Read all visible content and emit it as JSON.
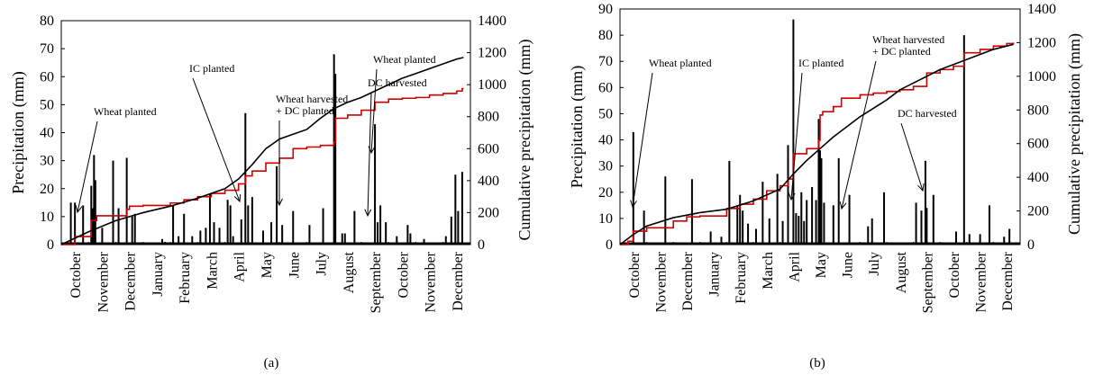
{
  "chart_data": [
    {
      "type": "bar",
      "panel_label": "(a)",
      "ylabel": "Precipitation (mm)",
      "y2label": "Cumulative precipitation (mm)",
      "ylim": [
        0,
        80
      ],
      "yticks": [
        "0",
        "10",
        "20",
        "30",
        "40",
        "50",
        "60",
        "70",
        "80"
      ],
      "y2lim": [
        0,
        1400
      ],
      "y2ticks": [
        "0",
        "200",
        "400",
        "600",
        "800",
        "1000",
        "1200",
        "1400"
      ],
      "months": [
        "October",
        "November",
        "December",
        "January",
        "February",
        "March",
        "April",
        "May",
        "June",
        "July",
        "August",
        "September",
        "October",
        "November",
        "December"
      ],
      "daily_precip": {
        "name": "Daily precipitation",
        "color": "#000000",
        "points": [
          [
            0.35,
            15
          ],
          [
            0.5,
            15
          ],
          [
            0.8,
            14
          ],
          [
            1.1,
            21
          ],
          [
            1.15,
            13
          ],
          [
            1.2,
            32
          ],
          [
            1.25,
            23
          ],
          [
            1.5,
            6
          ],
          [
            1.9,
            30
          ],
          [
            2.1,
            13
          ],
          [
            2.4,
            31
          ],
          [
            2.6,
            10
          ],
          [
            2.7,
            11
          ],
          [
            3.7,
            2
          ],
          [
            3.8,
            1
          ],
          [
            4.1,
            14
          ],
          [
            4.3,
            3
          ],
          [
            4.5,
            11
          ],
          [
            4.8,
            3
          ],
          [
            5.1,
            5
          ],
          [
            5.3,
            6
          ],
          [
            5.45,
            18
          ],
          [
            5.6,
            8
          ],
          [
            5.8,
            6
          ],
          [
            6.1,
            16
          ],
          [
            6.2,
            14
          ],
          [
            6.3,
            3
          ],
          [
            6.6,
            9
          ],
          [
            6.75,
            47
          ],
          [
            6.85,
            14
          ],
          [
            7.0,
            17
          ],
          [
            7.4,
            5
          ],
          [
            7.7,
            8
          ],
          [
            7.9,
            28
          ],
          [
            8.1,
            7
          ],
          [
            8.5,
            12
          ],
          [
            9.1,
            7
          ],
          [
            9.6,
            13
          ],
          [
            10.0,
            68
          ],
          [
            10.05,
            61
          ],
          [
            10.3,
            4
          ],
          [
            10.4,
            4
          ],
          [
            10.75,
            12
          ],
          [
            11.5,
            43
          ],
          [
            11.6,
            8
          ],
          [
            11.7,
            14
          ],
          [
            11.9,
            8
          ],
          [
            12.3,
            3
          ],
          [
            12.7,
            7
          ],
          [
            12.8,
            4
          ],
          [
            13.3,
            2
          ],
          [
            14.1,
            3
          ],
          [
            14.3,
            10
          ],
          [
            14.45,
            25
          ],
          [
            14.55,
            12
          ],
          [
            14.7,
            26
          ]
        ]
      },
      "cumulative": [
        {
          "name": "Cumulative (red)",
          "color": "#cc0000",
          "points": [
            [
              0,
              0
            ],
            [
              0.5,
              50
            ],
            [
              1.1,
              150
            ],
            [
              1.3,
              180
            ],
            [
              2.4,
              220
            ],
            [
              2.5,
              240
            ],
            [
              3.0,
              245
            ],
            [
              4.0,
              260
            ],
            [
              4.5,
              280
            ],
            [
              5.0,
              300
            ],
            [
              5.5,
              320
            ],
            [
              6.0,
              340
            ],
            [
              6.5,
              380
            ],
            [
              6.75,
              430
            ],
            [
              7.0,
              460
            ],
            [
              7.5,
              510
            ],
            [
              8.0,
              540
            ],
            [
              8.5,
              600
            ],
            [
              9.0,
              610
            ],
            [
              9.5,
              620
            ],
            [
              10.0,
              640
            ],
            [
              10.05,
              790
            ],
            [
              10.5,
              810
            ],
            [
              11.0,
              840
            ],
            [
              11.5,
              890
            ],
            [
              12.0,
              910
            ],
            [
              12.5,
              915
            ],
            [
              13.0,
              920
            ],
            [
              13.5,
              935
            ],
            [
              14.0,
              945
            ],
            [
              14.5,
              960
            ],
            [
              14.7,
              975
            ],
            [
              14.75,
              975
            ]
          ]
        },
        {
          "name": "Cumulative (black)",
          "color": "#000000",
          "points": [
            [
              0,
              0
            ],
            [
              1.0,
              80
            ],
            [
              2.0,
              150
            ],
            [
              3.0,
              200
            ],
            [
              4.0,
              240
            ],
            [
              5.0,
              290
            ],
            [
              6.0,
              350
            ],
            [
              6.5,
              410
            ],
            [
              7.0,
              500
            ],
            [
              7.5,
              600
            ],
            [
              8.0,
              660
            ],
            [
              8.5,
              690
            ],
            [
              9.0,
              720
            ],
            [
              9.5,
              790
            ],
            [
              10.0,
              850
            ],
            [
              10.5,
              890
            ],
            [
              11.0,
              920
            ],
            [
              11.5,
              960
            ],
            [
              12.0,
              1000
            ],
            [
              12.5,
              1040
            ],
            [
              13.0,
              1070
            ],
            [
              13.5,
              1100
            ],
            [
              14.0,
              1130
            ],
            [
              14.5,
              1160
            ],
            [
              14.75,
              1170
            ]
          ]
        }
      ],
      "annotations": [
        {
          "lines": [
            "Wheat planted"
          ],
          "at": [
            0.6,
            18
          ]
        },
        {
          "lines": [
            "IC planted"
          ],
          "at": [
            6.3,
            16
          ]
        },
        {
          "lines": [
            "Wheat harvested",
            "+ DC planted"
          ],
          "at": [
            7.9,
            15
          ]
        },
        {
          "lines": [
            "Wheat planted"
          ],
          "at": [
            10.2,
            17
          ]
        },
        {
          "lines": [
            "DC harvested"
          ],
          "at": [
            10.7,
            15
          ]
        }
      ]
    },
    {
      "type": "bar",
      "panel_label": "(b)",
      "ylabel": "Precipitation (mm)",
      "y2label": "Cumulative precipitation (mm)",
      "ylim": [
        0,
        90
      ],
      "yticks": [
        "0",
        "10",
        "20",
        "30",
        "40",
        "50",
        "60",
        "70",
        "80",
        "90"
      ],
      "y2lim": [
        0,
        1400
      ],
      "y2ticks": [
        "0",
        "200",
        "400",
        "600",
        "800",
        "1000",
        "1200",
        "1400"
      ],
      "months": [
        "October",
        "November",
        "December",
        "January",
        "February",
        "March",
        "April",
        "May",
        "June",
        "July",
        "August",
        "September",
        "October",
        "November",
        "December"
      ],
      "daily_precip": {
        "name": "Daily precipitation",
        "color": "#000000",
        "points": [
          [
            0.5,
            43
          ],
          [
            0.9,
            13
          ],
          [
            1.7,
            26
          ],
          [
            2.7,
            25
          ],
          [
            3.4,
            5
          ],
          [
            3.8,
            3
          ],
          [
            4.1,
            32
          ],
          [
            4.4,
            15
          ],
          [
            4.5,
            19
          ],
          [
            4.6,
            13
          ],
          [
            4.8,
            8
          ],
          [
            5.1,
            6
          ],
          [
            5.35,
            24
          ],
          [
            5.6,
            10
          ],
          [
            5.9,
            27
          ],
          [
            6.1,
            9
          ],
          [
            6.3,
            38
          ],
          [
            6.5,
            86
          ],
          [
            6.6,
            12
          ],
          [
            6.7,
            11
          ],
          [
            6.8,
            20
          ],
          [
            6.9,
            9
          ],
          [
            7.0,
            17
          ],
          [
            7.2,
            22
          ],
          [
            7.35,
            17
          ],
          [
            7.45,
            48
          ],
          [
            7.5,
            36
          ],
          [
            7.55,
            33
          ],
          [
            7.65,
            16
          ],
          [
            8.0,
            15
          ],
          [
            8.2,
            33
          ],
          [
            8.6,
            19
          ],
          [
            9.3,
            7
          ],
          [
            9.45,
            10
          ],
          [
            9.9,
            20
          ],
          [
            11.1,
            16
          ],
          [
            11.3,
            13
          ],
          [
            11.45,
            32
          ],
          [
            11.5,
            14
          ],
          [
            11.75,
            19
          ],
          [
            12.6,
            5
          ],
          [
            12.9,
            80
          ],
          [
            13.1,
            4
          ],
          [
            13.5,
            4
          ],
          [
            13.85,
            15
          ],
          [
            14.4,
            3
          ],
          [
            14.6,
            6
          ]
        ]
      },
      "cumulative": [
        {
          "name": "Cumulative (red)",
          "color": "#cc0000",
          "points": [
            [
              0,
              0
            ],
            [
              0.3,
              20
            ],
            [
              0.5,
              80
            ],
            [
              1.0,
              100
            ],
            [
              2.0,
              140
            ],
            [
              2.5,
              165
            ],
            [
              3.0,
              170
            ],
            [
              4.0,
              215
            ],
            [
              4.5,
              240
            ],
            [
              5.0,
              270
            ],
            [
              5.5,
              320
            ],
            [
              6.0,
              350
            ],
            [
              6.3,
              390
            ],
            [
              6.5,
              540
            ],
            [
              7.0,
              570
            ],
            [
              7.45,
              620
            ],
            [
              7.5,
              770
            ],
            [
              7.6,
              790
            ],
            [
              8.0,
              820
            ],
            [
              8.3,
              870
            ],
            [
              9.0,
              890
            ],
            [
              9.5,
              900
            ],
            [
              10.0,
              910
            ],
            [
              10.5,
              920
            ],
            [
              11.0,
              940
            ],
            [
              11.5,
              1020
            ],
            [
              12.0,
              1040
            ],
            [
              12.5,
              1060
            ],
            [
              12.9,
              1140
            ],
            [
              13.5,
              1160
            ],
            [
              14.0,
              1180
            ],
            [
              14.5,
              1195
            ],
            [
              14.75,
              1200
            ]
          ]
        },
        {
          "name": "Cumulative (black)",
          "color": "#000000",
          "points": [
            [
              0,
              0
            ],
            [
              0.5,
              60
            ],
            [
              1.0,
              110
            ],
            [
              2.0,
              160
            ],
            [
              3.0,
              190
            ],
            [
              4.0,
              210
            ],
            [
              5.0,
              260
            ],
            [
              6.0,
              330
            ],
            [
              6.5,
              420
            ],
            [
              7.0,
              500
            ],
            [
              7.5,
              570
            ],
            [
              8.0,
              640
            ],
            [
              8.5,
              700
            ],
            [
              9.0,
              760
            ],
            [
              9.5,
              810
            ],
            [
              10.0,
              860
            ],
            [
              10.5,
              920
            ],
            [
              11.0,
              960
            ],
            [
              11.5,
              1000
            ],
            [
              12.0,
              1040
            ],
            [
              12.5,
              1070
            ],
            [
              13.0,
              1100
            ],
            [
              13.5,
              1130
            ],
            [
              14.0,
              1160
            ],
            [
              14.5,
              1180
            ],
            [
              14.75,
              1190
            ]
          ]
        }
      ],
      "annotations": [
        {
          "lines": [
            "Wheat planted"
          ],
          "at": [
            0.6,
            22
          ]
        },
        {
          "lines": [
            "IC planted"
          ],
          "at": [
            6.5,
            23
          ]
        },
        {
          "lines": [
            "Wheat harvested",
            "+ DC planted"
          ],
          "at": [
            8.0,
            21
          ]
        },
        {
          "lines": [
            "DC harvested"
          ],
          "at": [
            11.1,
            25
          ]
        }
      ]
    }
  ]
}
